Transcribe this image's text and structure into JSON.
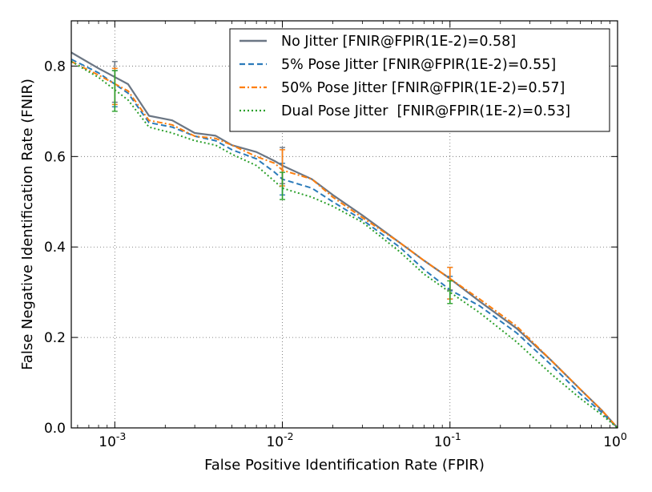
{
  "chart_data": {
    "type": "line",
    "xscale": "log",
    "xlabel": "False Positive Identification Rate (FPIR)",
    "ylabel": "False Negative Identification Rate (FNIR)",
    "xlim": [
      0.00055,
      1.0
    ],
    "ylim": [
      0.0,
      0.9
    ],
    "grid": true,
    "legend_position": "top-right",
    "x_ticks": [
      {
        "value": 0.001,
        "base": "10",
        "exp": "-3"
      },
      {
        "value": 0.01,
        "base": "10",
        "exp": "-2"
      },
      {
        "value": 0.1,
        "base": "10",
        "exp": "-1"
      },
      {
        "value": 1.0,
        "base": "10",
        "exp": "0"
      }
    ],
    "y_ticks": [
      {
        "value": 0.0,
        "label": "0.0"
      },
      {
        "value": 0.2,
        "label": "0.2"
      },
      {
        "value": 0.4,
        "label": "0.4"
      },
      {
        "value": 0.6,
        "label": "0.6"
      },
      {
        "value": 0.8,
        "label": "0.8"
      }
    ],
    "series": [
      {
        "name": "No Jitter [FNIR@FPIR(1E-2)=0.58]",
        "color": "#6b7684",
        "dash": "solid",
        "points": [
          [
            0.00055,
            0.83
          ],
          [
            0.0008,
            0.795
          ],
          [
            0.0012,
            0.76
          ],
          [
            0.0016,
            0.69
          ],
          [
            0.0022,
            0.68
          ],
          [
            0.003,
            0.652
          ],
          [
            0.004,
            0.646
          ],
          [
            0.005,
            0.625
          ],
          [
            0.007,
            0.61
          ],
          [
            0.009,
            0.59
          ],
          [
            0.01,
            0.58
          ],
          [
            0.015,
            0.55
          ],
          [
            0.02,
            0.515
          ],
          [
            0.03,
            0.47
          ],
          [
            0.05,
            0.41
          ],
          [
            0.07,
            0.37
          ],
          [
            0.1,
            0.33
          ],
          [
            0.15,
            0.28
          ],
          [
            0.25,
            0.22
          ],
          [
            0.4,
            0.15
          ],
          [
            0.6,
            0.085
          ],
          [
            0.8,
            0.04
          ],
          [
            1.0,
            0.0
          ]
        ],
        "error_bars": [
          {
            "x": 0.001,
            "y": 0.765,
            "err": 0.045
          },
          {
            "x": 0.01,
            "y": 0.58,
            "err": 0.04
          },
          {
            "x": 0.1,
            "y": 0.33,
            "err": 0.025
          }
        ]
      },
      {
        "name": "5% Pose Jitter [FNIR@FPIR(1E-2)=0.55]",
        "color": "#2b7bba",
        "dash": "dashed",
        "points": [
          [
            0.00055,
            0.815
          ],
          [
            0.0008,
            0.785
          ],
          [
            0.0012,
            0.74
          ],
          [
            0.0016,
            0.675
          ],
          [
            0.0022,
            0.665
          ],
          [
            0.003,
            0.645
          ],
          [
            0.004,
            0.635
          ],
          [
            0.005,
            0.615
          ],
          [
            0.007,
            0.595
          ],
          [
            0.009,
            0.565
          ],
          [
            0.01,
            0.55
          ],
          [
            0.015,
            0.53
          ],
          [
            0.02,
            0.5
          ],
          [
            0.03,
            0.46
          ],
          [
            0.05,
            0.4
          ],
          [
            0.07,
            0.35
          ],
          [
            0.1,
            0.305
          ],
          [
            0.15,
            0.27
          ],
          [
            0.25,
            0.21
          ],
          [
            0.4,
            0.14
          ],
          [
            0.6,
            0.075
          ],
          [
            0.8,
            0.035
          ],
          [
            1.0,
            0.0
          ]
        ],
        "error_bars": [
          {
            "x": 0.001,
            "y": 0.75,
            "err": 0.04
          },
          {
            "x": 0.01,
            "y": 0.55,
            "err": 0.035
          },
          {
            "x": 0.1,
            "y": 0.31,
            "err": 0.025
          }
        ]
      },
      {
        "name": "50% Pose Jitter [FNIR@FPIR(1E-2)=0.57]",
        "color": "#ff7f0e",
        "dash": "dashdot",
        "points": [
          [
            0.00055,
            0.81
          ],
          [
            0.0008,
            0.78
          ],
          [
            0.0012,
            0.745
          ],
          [
            0.0016,
            0.68
          ],
          [
            0.0022,
            0.67
          ],
          [
            0.003,
            0.645
          ],
          [
            0.004,
            0.64
          ],
          [
            0.005,
            0.625
          ],
          [
            0.007,
            0.6
          ],
          [
            0.009,
            0.585
          ],
          [
            0.01,
            0.57
          ],
          [
            0.015,
            0.55
          ],
          [
            0.02,
            0.51
          ],
          [
            0.03,
            0.465
          ],
          [
            0.05,
            0.41
          ],
          [
            0.07,
            0.37
          ],
          [
            0.1,
            0.33
          ],
          [
            0.15,
            0.285
          ],
          [
            0.25,
            0.225
          ],
          [
            0.4,
            0.15
          ],
          [
            0.6,
            0.085
          ],
          [
            0.8,
            0.04
          ],
          [
            1.0,
            0.0
          ]
        ],
        "error_bars": [
          {
            "x": 0.001,
            "y": 0.755,
            "err": 0.04
          },
          {
            "x": 0.01,
            "y": 0.575,
            "err": 0.04
          },
          {
            "x": 0.1,
            "y": 0.32,
            "err": 0.035
          }
        ]
      },
      {
        "name": "Dual Pose Jitter  [FNIR@FPIR(1E-2)=0.53]",
        "color": "#2ca02c",
        "dash": "dotted",
        "points": [
          [
            0.00055,
            0.81
          ],
          [
            0.0008,
            0.775
          ],
          [
            0.0012,
            0.725
          ],
          [
            0.0016,
            0.665
          ],
          [
            0.0022,
            0.652
          ],
          [
            0.003,
            0.635
          ],
          [
            0.004,
            0.625
          ],
          [
            0.005,
            0.605
          ],
          [
            0.007,
            0.58
          ],
          [
            0.009,
            0.545
          ],
          [
            0.01,
            0.53
          ],
          [
            0.015,
            0.51
          ],
          [
            0.02,
            0.49
          ],
          [
            0.03,
            0.455
          ],
          [
            0.05,
            0.39
          ],
          [
            0.07,
            0.34
          ],
          [
            0.1,
            0.3
          ],
          [
            0.15,
            0.255
          ],
          [
            0.25,
            0.19
          ],
          [
            0.4,
            0.12
          ],
          [
            0.6,
            0.065
          ],
          [
            0.8,
            0.03
          ],
          [
            1.0,
            0.0
          ]
        ],
        "error_bars": [
          {
            "x": 0.001,
            "y": 0.745,
            "err": 0.045
          },
          {
            "x": 0.01,
            "y": 0.535,
            "err": 0.03
          },
          {
            "x": 0.1,
            "y": 0.3,
            "err": 0.025
          }
        ]
      }
    ]
  }
}
